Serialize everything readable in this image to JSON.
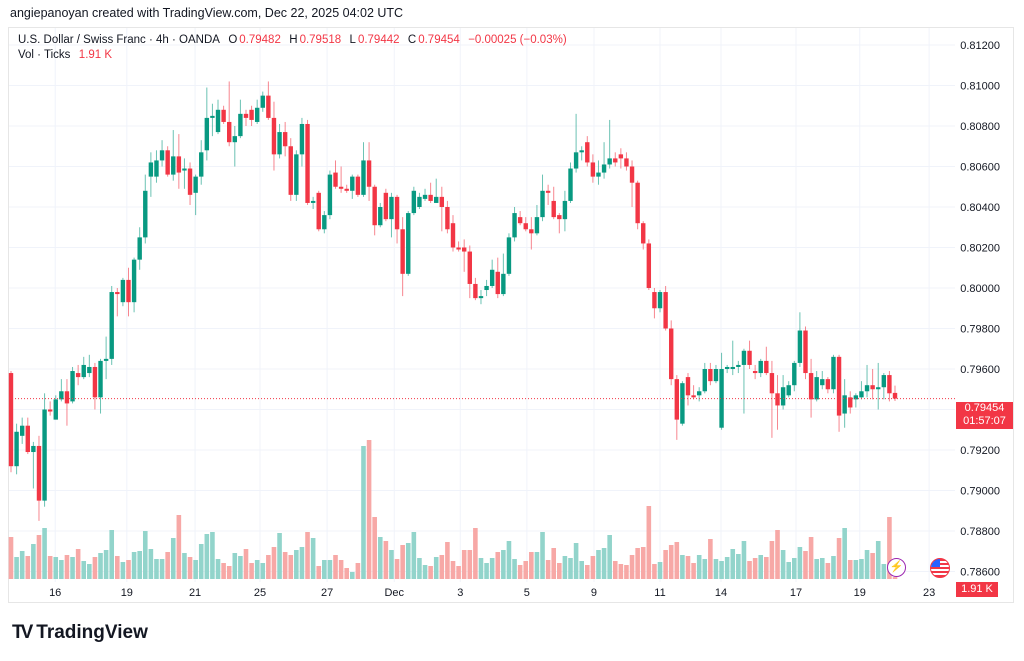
{
  "credit": "angiepanoyan created with TradingView.com, Dec 22, 2025 04:02 UTC",
  "legend": {
    "symbol": "U.S. Dollar / Swiss Franc · 4h · OANDA",
    "o_label": "O",
    "o": "0.79482",
    "h_label": "H",
    "h": "0.79518",
    "l_label": "L",
    "l": "0.79442",
    "c_label": "C",
    "c": "0.79454",
    "change": "−0.00025 (−0.03%)",
    "vol_label": "Vol · Ticks",
    "vol": "1.91 K"
  },
  "price_badge": {
    "price": "0.79454",
    "countdown": "01:57:07"
  },
  "vol_badge": "1.91 K",
  "icons": {
    "bolt": "lightning-icon",
    "flag": "us-flag-icon"
  },
  "logo": {
    "mark": "TV",
    "text": "TradingView"
  },
  "colors": {
    "up": "#089981",
    "down": "#f23645",
    "vol_up": "#92d4cb",
    "vol_down": "#f7a8a6",
    "grid": "#f0f3fa"
  },
  "chart_data": {
    "type": "candlestick",
    "title": "U.S. Dollar / Swiss Franc · 4h · OANDA",
    "ylim": [
      0.786,
      0.8125
    ],
    "y_ticks": [
      "0.81200",
      "0.81000",
      "0.80800",
      "0.80600",
      "0.80400",
      "0.80200",
      "0.80000",
      "0.79800",
      "0.79600",
      "0.79400",
      "0.79200",
      "0.79000",
      "0.78800",
      "0.78600"
    ],
    "x_ticks": [
      [
        "16",
        7.9
      ],
      [
        "19",
        20.7
      ],
      [
        "21",
        32.9
      ],
      [
        "25",
        44.5
      ],
      [
        "27",
        56.5
      ],
      [
        "Dec",
        68.5
      ],
      [
        "3",
        80.3
      ],
      [
        "5",
        92.2
      ],
      [
        "9",
        104.2
      ],
      [
        "11",
        116
      ],
      [
        "14",
        126.9
      ],
      [
        "17",
        140.3
      ],
      [
        "19",
        151.7
      ],
      [
        "23",
        164.1
      ]
    ],
    "last_price": 0.79454,
    "ohlc": [
      [
        0.7958,
        0.7959,
        0.7909,
        0.7912
      ],
      [
        0.7912,
        0.7933,
        0.7908,
        0.7929
      ],
      [
        0.7927,
        0.7936,
        0.7923,
        0.7932
      ],
      [
        0.7932,
        0.7936,
        0.7918,
        0.7919
      ],
      [
        0.7919,
        0.7924,
        0.7901,
        0.7922
      ],
      [
        0.7922,
        0.7927,
        0.7885,
        0.7895
      ],
      [
        0.7895,
        0.7948,
        0.7892,
        0.794
      ],
      [
        0.794,
        0.7944,
        0.7937,
        0.7939
      ],
      [
        0.7935,
        0.7947,
        0.7935,
        0.7945
      ],
      [
        0.7945,
        0.7955,
        0.7944,
        0.7949
      ],
      [
        0.7949,
        0.7955,
        0.7932,
        0.7943
      ],
      [
        0.7944,
        0.7961,
        0.7943,
        0.7959
      ],
      [
        0.7958,
        0.7962,
        0.7952,
        0.7956
      ],
      [
        0.7956,
        0.7966,
        0.7955,
        0.7962
      ],
      [
        0.7958,
        0.7967,
        0.7956,
        0.7961
      ],
      [
        0.7961,
        0.7963,
        0.794,
        0.7946
      ],
      [
        0.7946,
        0.7965,
        0.7938,
        0.7964
      ],
      [
        0.7964,
        0.7976,
        0.7955,
        0.7965
      ],
      [
        0.7965,
        0.8001,
        0.7962,
        0.7998
      ],
      [
        0.7998,
        0.8,
        0.7986,
        0.7997
      ],
      [
        0.7993,
        0.8005,
        0.7991,
        0.8004
      ],
      [
        0.8004,
        0.801,
        0.7986,
        0.7993
      ],
      [
        0.7993,
        0.8015,
        0.7988,
        0.8014
      ],
      [
        0.8014,
        0.803,
        0.8009,
        0.8025
      ],
      [
        0.8025,
        0.8056,
        0.8022,
        0.8048
      ],
      [
        0.8055,
        0.8067,
        0.8045,
        0.8062
      ],
      [
        0.8055,
        0.8068,
        0.8052,
        0.8063
      ],
      [
        0.8063,
        0.8073,
        0.806,
        0.8068
      ],
      [
        0.8068,
        0.807,
        0.8055,
        0.8056
      ],
      [
        0.8056,
        0.8078,
        0.8053,
        0.8065
      ],
      [
        0.8065,
        0.8076,
        0.8049,
        0.8057
      ],
      [
        0.8058,
        0.8064,
        0.8049,
        0.8059
      ],
      [
        0.8059,
        0.8062,
        0.8041,
        0.8046
      ],
      [
        0.8047,
        0.8056,
        0.8036,
        0.8055
      ],
      [
        0.8055,
        0.8073,
        0.8051,
        0.8067
      ],
      [
        0.8068,
        0.8099,
        0.8063,
        0.8084
      ],
      [
        0.8084,
        0.8091,
        0.8075,
        0.8085
      ],
      [
        0.8077,
        0.8093,
        0.8076,
        0.8088
      ],
      [
        0.8088,
        0.809,
        0.8081,
        0.8082
      ],
      [
        0.8082,
        0.8102,
        0.807,
        0.8072
      ],
      [
        0.8072,
        0.808,
        0.806,
        0.8075
      ],
      [
        0.8075,
        0.8093,
        0.8074,
        0.8086
      ],
      [
        0.8086,
        0.8088,
        0.808,
        0.8084
      ],
      [
        0.8088,
        0.809,
        0.808,
        0.8083
      ],
      [
        0.8082,
        0.8093,
        0.8081,
        0.8089
      ],
      [
        0.8089,
        0.8097,
        0.8087,
        0.8095
      ],
      [
        0.8095,
        0.8102,
        0.8083,
        0.8084
      ],
      [
        0.8084,
        0.8092,
        0.8058,
        0.8066
      ],
      [
        0.8066,
        0.8081,
        0.8064,
        0.8077
      ],
      [
        0.8077,
        0.8082,
        0.8065,
        0.807
      ],
      [
        0.807,
        0.8074,
        0.8043,
        0.8046
      ],
      [
        0.8046,
        0.8068,
        0.8043,
        0.8066
      ],
      [
        0.8066,
        0.8084,
        0.806,
        0.8081
      ],
      [
        0.8081,
        0.8083,
        0.8041,
        0.8042
      ],
      [
        0.8042,
        0.8045,
        0.8039,
        0.8043
      ],
      [
        0.8047,
        0.8048,
        0.8028,
        0.8029
      ],
      [
        0.8029,
        0.8038,
        0.8027,
        0.8036
      ],
      [
        0.8036,
        0.8058,
        0.8034,
        0.8056
      ],
      [
        0.8057,
        0.8063,
        0.8049,
        0.805
      ],
      [
        0.805,
        0.806,
        0.8047,
        0.8049
      ],
      [
        0.8049,
        0.8051,
        0.8047,
        0.8048
      ],
      [
        0.8048,
        0.8056,
        0.8044,
        0.8055
      ],
      [
        0.8055,
        0.8056,
        0.8045,
        0.8046
      ],
      [
        0.8046,
        0.8072,
        0.8045,
        0.8063
      ],
      [
        0.8063,
        0.8072,
        0.8043,
        0.805
      ],
      [
        0.805,
        0.8051,
        0.8026,
        0.8031
      ],
      [
        0.8031,
        0.8042,
        0.803,
        0.804
      ],
      [
        0.8047,
        0.8049,
        0.8033,
        0.8034
      ],
      [
        0.8034,
        0.8047,
        0.8025,
        0.8045
      ],
      [
        0.8045,
        0.8046,
        0.8022,
        0.8029
      ],
      [
        0.8029,
        0.8035,
        0.7996,
        0.8007
      ],
      [
        0.8007,
        0.8038,
        0.8006,
        0.8037
      ],
      [
        0.8037,
        0.805,
        0.8036,
        0.8048
      ],
      [
        0.804,
        0.8047,
        0.8039,
        0.8045
      ],
      [
        0.8044,
        0.8049,
        0.8043,
        0.8046
      ],
      [
        0.8046,
        0.8052,
        0.8042,
        0.8043
      ],
      [
        0.8042,
        0.8054,
        0.8042,
        0.8045
      ],
      [
        0.8045,
        0.805,
        0.8028,
        0.804
      ],
      [
        0.804,
        0.8043,
        0.8027,
        0.8029
      ],
      [
        0.8032,
        0.8036,
        0.8018,
        0.802
      ],
      [
        0.802,
        0.8023,
        0.8018,
        0.8019
      ],
      [
        0.802,
        0.8024,
        0.8008,
        0.8018
      ],
      [
        0.8018,
        0.8021,
        0.7995,
        0.8002
      ],
      [
        0.8002,
        0.8005,
        0.7994,
        0.7995
      ],
      [
        0.7995,
        0.7999,
        0.7992,
        0.7996
      ],
      [
        0.7999,
        0.8004,
        0.7996,
        0.8001
      ],
      [
        0.8001,
        0.8014,
        0.8,
        0.8009
      ],
      [
        0.8008,
        0.8015,
        0.7995,
        0.7997
      ],
      [
        0.7997,
        0.8017,
        0.7996,
        0.8007
      ],
      [
        0.8007,
        0.8027,
        0.8006,
        0.8025
      ],
      [
        0.8025,
        0.804,
        0.8023,
        0.8037
      ],
      [
        0.8035,
        0.8038,
        0.8031,
        0.8032
      ],
      [
        0.8032,
        0.8035,
        0.8028,
        0.8029
      ],
      [
        0.8029,
        0.8035,
        0.8019,
        0.8027
      ],
      [
        0.8027,
        0.8041,
        0.8026,
        0.8035
      ],
      [
        0.8035,
        0.8056,
        0.8033,
        0.8048
      ],
      [
        0.8048,
        0.8051,
        0.8041,
        0.8047
      ],
      [
        0.8043,
        0.805,
        0.8034,
        0.8035
      ],
      [
        0.8036,
        0.8037,
        0.8027,
        0.8034
      ],
      [
        0.8034,
        0.8048,
        0.8028,
        0.8043
      ],
      [
        0.8043,
        0.8062,
        0.8042,
        0.8059
      ],
      [
        0.8059,
        0.8086,
        0.8057,
        0.8067
      ],
      [
        0.8067,
        0.807,
        0.8063,
        0.8068
      ],
      [
        0.8072,
        0.8075,
        0.806,
        0.8062
      ],
      [
        0.8062,
        0.8066,
        0.8052,
        0.8055
      ],
      [
        0.8055,
        0.8063,
        0.8051,
        0.8057
      ],
      [
        0.8057,
        0.8072,
        0.8054,
        0.8061
      ],
      [
        0.8061,
        0.8083,
        0.8059,
        0.8064
      ],
      [
        0.8064,
        0.8067,
        0.806,
        0.8062
      ],
      [
        0.8066,
        0.8069,
        0.8059,
        0.8064
      ],
      [
        0.8064,
        0.8067,
        0.8058,
        0.806
      ],
      [
        0.806,
        0.8063,
        0.804,
        0.8052
      ],
      [
        0.8052,
        0.8053,
        0.8029,
        0.8032
      ],
      [
        0.8032,
        0.8033,
        0.8019,
        0.8022
      ],
      [
        0.8022,
        0.8024,
        0.7999,
        0.8
      ],
      [
        0.7998,
        0.8,
        0.7985,
        0.799
      ],
      [
        0.799,
        0.7999,
        0.7988,
        0.7998
      ],
      [
        0.7998,
        0.8001,
        0.7979,
        0.798
      ],
      [
        0.798,
        0.7984,
        0.7952,
        0.7955
      ],
      [
        0.7955,
        0.7957,
        0.7925,
        0.7935
      ],
      [
        0.7933,
        0.7954,
        0.7932,
        0.7953
      ],
      [
        0.7956,
        0.7958,
        0.7942,
        0.7947
      ],
      [
        0.7947,
        0.7952,
        0.7945,
        0.7946
      ],
      [
        0.7947,
        0.7951,
        0.7944,
        0.7949
      ],
      [
        0.7949,
        0.7963,
        0.7948,
        0.796
      ],
      [
        0.796,
        0.7963,
        0.7952,
        0.7954
      ],
      [
        0.7954,
        0.7962,
        0.7953,
        0.796
      ],
      [
        0.7931,
        0.7968,
        0.793,
        0.796
      ],
      [
        0.796,
        0.7962,
        0.7958,
        0.7961
      ],
      [
        0.796,
        0.7974,
        0.7957,
        0.7961
      ],
      [
        0.7961,
        0.7964,
        0.7958,
        0.7962
      ],
      [
        0.7962,
        0.797,
        0.7938,
        0.7969
      ],
      [
        0.7969,
        0.7974,
        0.796,
        0.7962
      ],
      [
        0.7959,
        0.7962,
        0.7955,
        0.7958
      ],
      [
        0.7958,
        0.7965,
        0.7956,
        0.7964
      ],
      [
        0.7964,
        0.7971,
        0.7957,
        0.7958
      ],
      [
        0.7958,
        0.7964,
        0.7926,
        0.7948
      ],
      [
        0.7948,
        0.7957,
        0.793,
        0.7942
      ],
      [
        0.7942,
        0.7957,
        0.794,
        0.7951
      ],
      [
        0.7947,
        0.7954,
        0.7946,
        0.7952
      ],
      [
        0.7952,
        0.7964,
        0.7949,
        0.7963
      ],
      [
        0.7963,
        0.7988,
        0.7961,
        0.7979
      ],
      [
        0.7979,
        0.7981,
        0.7955,
        0.7958
      ],
      [
        0.7958,
        0.7965,
        0.7936,
        0.7945
      ],
      [
        0.7945,
        0.7959,
        0.7944,
        0.7956
      ],
      [
        0.7952,
        0.7959,
        0.795,
        0.7955
      ],
      [
        0.7955,
        0.7956,
        0.7948,
        0.795
      ],
      [
        0.795,
        0.7967,
        0.7948,
        0.7966
      ],
      [
        0.7966,
        0.7967,
        0.7929,
        0.7937
      ],
      [
        0.7938,
        0.7955,
        0.7931,
        0.7947
      ],
      [
        0.7946,
        0.7949,
        0.7938,
        0.7941
      ],
      [
        0.7945,
        0.7948,
        0.7941,
        0.7947
      ],
      [
        0.7946,
        0.7954,
        0.7945,
        0.7949
      ],
      [
        0.7949,
        0.7962,
        0.7946,
        0.7952
      ],
      [
        0.7952,
        0.796,
        0.7945,
        0.795
      ],
      [
        0.795,
        0.7963,
        0.794,
        0.7951
      ],
      [
        0.7951,
        0.7958,
        0.7945,
        0.7957
      ],
      [
        0.7957,
        0.7959,
        0.7944,
        0.7948
      ],
      [
        0.79482,
        0.79518,
        0.79442,
        0.79454
      ]
    ],
    "volume_k": [
      42,
      22,
      28,
      23,
      35,
      44,
      51,
      23,
      22,
      19,
      24,
      22,
      30,
      18,
      15,
      22,
      26,
      29,
      49,
      23,
      17,
      19,
      27,
      28,
      48,
      30,
      20,
      20,
      27,
      41,
      64,
      26,
      22,
      19,
      35,
      45,
      47,
      20,
      16,
      13,
      26,
      23,
      30,
      16,
      19,
      16,
      24,
      32,
      46,
      27,
      24,
      29,
      32,
      47,
      41,
      13,
      19,
      19,
      24,
      19,
      11,
      7,
      16,
      133,
      139,
      62,
      42,
      38,
      29,
      20,
      34,
      36,
      47,
      21,
      14,
      13,
      22,
      24,
      37,
      18,
      13,
      29,
      29,
      51,
      21,
      16,
      21,
      27,
      29,
      38,
      20,
      14,
      18,
      27,
      27,
      47,
      19,
      31,
      16,
      23,
      21,
      36,
      18,
      14,
      23,
      29,
      31,
      44,
      18,
      15,
      14,
      24,
      31,
      32,
      73,
      15,
      17,
      29,
      34,
      37,
      24,
      23,
      16,
      24,
      20,
      40,
      20,
      18,
      22,
      30,
      25,
      38,
      18,
      21,
      24,
      22,
      38,
      49,
      29,
      17,
      21,
      32,
      28,
      42,
      20,
      21,
      16,
      23,
      41,
      51,
      19,
      19,
      20,
      29,
      26,
      38,
      15,
      62,
      1.91
    ]
  }
}
